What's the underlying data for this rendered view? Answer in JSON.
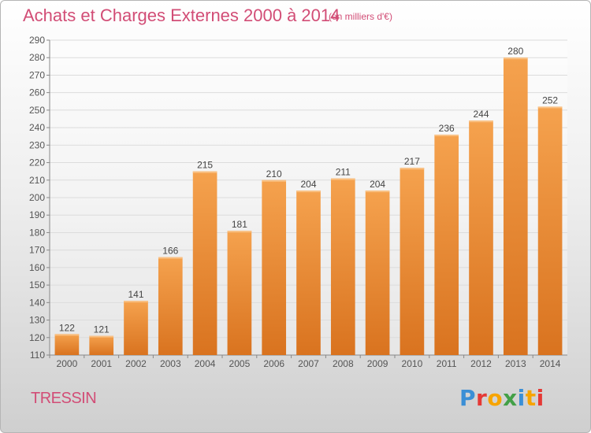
{
  "header": {
    "title": "Achats et Charges Externes 2000 à 2014",
    "subtitle": "(en milliers d'€)"
  },
  "footer": {
    "place": "TRESSIN",
    "brand": "Proxiti"
  },
  "colors": {
    "title": "#d24d76",
    "bar_light": "#f5a24e",
    "bar_dark": "#d9731f",
    "brand_letters": [
      "#3b8fd6",
      "#e53935",
      "#f7a400",
      "#43a047",
      "#3b8fd6",
      "#f7a400",
      "#e53935"
    ]
  },
  "chart_data": {
    "type": "bar",
    "title": "Achats et Charges Externes 2000 à 2014",
    "subtitle": "(en milliers d'€)",
    "categories": [
      "2000",
      "2001",
      "2002",
      "2003",
      "2004",
      "2005",
      "2006",
      "2007",
      "2008",
      "2009",
      "2010",
      "2011",
      "2012",
      "2013",
      "2014"
    ],
    "values": [
      122,
      121,
      141,
      166,
      215,
      181,
      210,
      204,
      211,
      204,
      217,
      236,
      244,
      280,
      252
    ],
    "ylim": [
      110,
      290
    ],
    "yticks": [
      110,
      120,
      130,
      140,
      150,
      160,
      170,
      180,
      190,
      200,
      210,
      220,
      230,
      240,
      250,
      260,
      270,
      280,
      290
    ],
    "grid": true,
    "legend": "none",
    "xlabel": "",
    "ylabel": ""
  }
}
